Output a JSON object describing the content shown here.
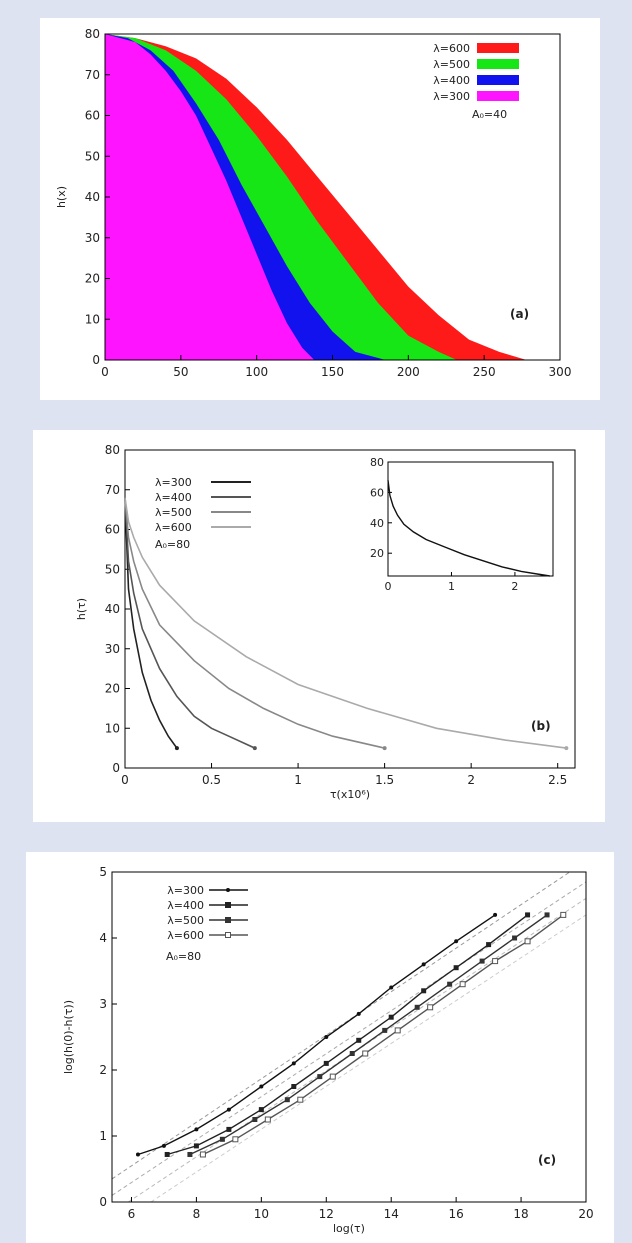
{
  "chart_data": [
    {
      "type": "area",
      "panel_label": "(a)",
      "xlabel": "",
      "ylabel": "h(x)",
      "xlim": [
        0,
        300
      ],
      "ylim": [
        0,
        80
      ],
      "xticks": [
        "0",
        "50",
        "100",
        "150",
        "200",
        "250",
        "300"
      ],
      "yticks": [
        "0",
        "10",
        "20",
        "30",
        "40",
        "50",
        "60",
        "70",
        "80"
      ],
      "param_label": "A₀=40",
      "legend_position": "top-right",
      "grid": false,
      "series": [
        {
          "name": "λ=600",
          "color": "#ff1a1a",
          "x": [
            0,
            20,
            40,
            60,
            80,
            100,
            120,
            140,
            160,
            180,
            200,
            220,
            240,
            260,
            278
          ],
          "y": [
            80,
            79,
            77,
            74,
            69,
            62,
            54,
            45,
            36,
            27,
            18,
            11,
            5,
            2,
            0
          ]
        },
        {
          "name": "λ=500",
          "color": "#16e616",
          "x": [
            0,
            20,
            40,
            60,
            80,
            100,
            120,
            140,
            160,
            180,
            200,
            220,
            232
          ],
          "y": [
            80,
            79,
            76,
            71,
            64,
            55,
            45,
            34,
            24,
            14,
            6,
            2,
            0
          ]
        },
        {
          "name": "λ=400",
          "color": "#1212ee",
          "x": [
            0,
            15,
            30,
            45,
            60,
            75,
            90,
            105,
            120,
            135,
            150,
            165,
            185
          ],
          "y": [
            80,
            79,
            76,
            71,
            63,
            54,
            43,
            33,
            23,
            14,
            7,
            2,
            0
          ]
        },
        {
          "name": "λ=300",
          "color": "#ff14ff",
          "x": [
            0,
            10,
            20,
            30,
            40,
            50,
            60,
            70,
            80,
            90,
            100,
            110,
            120,
            130,
            138
          ],
          "y": [
            80,
            79,
            78,
            75,
            71,
            66,
            60,
            52,
            44,
            35,
            26,
            17,
            9,
            3,
            0
          ]
        }
      ]
    },
    {
      "type": "line",
      "panel_label": "(b)",
      "xlabel": "τ(x10⁶)",
      "ylabel": "h(τ)",
      "xlim": [
        0,
        2.6
      ],
      "ylim": [
        0,
        80
      ],
      "xticks": [
        "0",
        "0.5",
        "1",
        "1.5",
        "2",
        "2.5"
      ],
      "yticks": [
        "0",
        "10",
        "20",
        "30",
        "40",
        "50",
        "60",
        "70",
        "80"
      ],
      "param_label": "A₀=80",
      "legend_position": "top-left",
      "grid": false,
      "series": [
        {
          "name": "λ=300",
          "color": "#222222",
          "x": [
            0,
            0.02,
            0.05,
            0.1,
            0.15,
            0.2,
            0.25,
            0.3
          ],
          "y": [
            68,
            45,
            35,
            24,
            17,
            12,
            8,
            5
          ]
        },
        {
          "name": "λ=400",
          "color": "#555555",
          "x": [
            0,
            0.02,
            0.05,
            0.1,
            0.2,
            0.3,
            0.4,
            0.5,
            0.6,
            0.75
          ],
          "y": [
            68,
            52,
            44,
            35,
            25,
            18,
            13,
            10,
            8,
            5
          ]
        },
        {
          "name": "λ=500",
          "color": "#888888",
          "x": [
            0,
            0.02,
            0.05,
            0.1,
            0.2,
            0.4,
            0.6,
            0.8,
            1.0,
            1.2,
            1.5
          ],
          "y": [
            68,
            58,
            52,
            45,
            36,
            27,
            20,
            15,
            11,
            8,
            5
          ]
        },
        {
          "name": "λ=600",
          "color": "#aaaaaa",
          "x": [
            0,
            0.02,
            0.05,
            0.1,
            0.2,
            0.4,
            0.7,
            1.0,
            1.4,
            1.8,
            2.2,
            2.55
          ],
          "y": [
            68,
            62,
            58,
            53,
            46,
            37,
            28,
            21,
            15,
            10,
            7,
            5
          ]
        }
      ],
      "inset": {
        "xlim": [
          0,
          2.6
        ],
        "ylim": [
          5,
          80
        ],
        "xticks": [
          "0",
          "1",
          "2"
        ],
        "yticks": [
          "20",
          "40",
          "60",
          "80"
        ],
        "x": [
          0,
          0.03,
          0.08,
          0.15,
          0.25,
          0.4,
          0.6,
          0.9,
          1.2,
          1.5,
          1.8,
          2.1,
          2.4,
          2.55
        ],
        "y": [
          68,
          58,
          51,
          45,
          39,
          34,
          29,
          24,
          19,
          15,
          11,
          8,
          6,
          5
        ]
      }
    },
    {
      "type": "scatter",
      "panel_label": "(c)",
      "xlabel": "log(τ)",
      "ylabel": "log(h(0)-h(τ))",
      "xlim": [
        5.4,
        20
      ],
      "ylim": [
        0,
        5
      ],
      "xticks": [
        "6",
        "8",
        "10",
        "12",
        "14",
        "16",
        "18",
        "20"
      ],
      "yticks": [
        "0",
        "1",
        "2",
        "3",
        "4",
        "5"
      ],
      "param_label": "A₀=80",
      "legend_position": "top-left",
      "grid": false,
      "series": [
        {
          "name": "λ=300",
          "color": "#111111",
          "marker": "dot",
          "x": [
            6.2,
            7,
            8,
            9,
            10,
            11,
            12,
            13,
            14,
            15,
            16,
            17.2
          ],
          "y": [
            0.72,
            0.85,
            1.1,
            1.4,
            1.75,
            2.1,
            2.5,
            2.85,
            3.25,
            3.6,
            3.95,
            4.35
          ]
        },
        {
          "name": "λ=400",
          "color": "#222222",
          "marker": "square",
          "x": [
            7.1,
            8,
            9,
            10,
            11,
            12,
            13,
            14,
            15,
            16,
            17,
            18.2
          ],
          "y": [
            0.72,
            0.85,
            1.1,
            1.4,
            1.75,
            2.1,
            2.45,
            2.8,
            3.2,
            3.55,
            3.9,
            4.35
          ]
        },
        {
          "name": "λ=500",
          "color": "#333333",
          "marker": "square",
          "x": [
            7.8,
            8.8,
            9.8,
            10.8,
            11.8,
            12.8,
            13.8,
            14.8,
            15.8,
            16.8,
            17.8,
            18.8
          ],
          "y": [
            0.72,
            0.95,
            1.25,
            1.55,
            1.9,
            2.25,
            2.6,
            2.95,
            3.3,
            3.65,
            4.0,
            4.35
          ]
        },
        {
          "name": "λ=600",
          "color": "#555555",
          "marker": "open-square",
          "x": [
            8.2,
            9.2,
            10.2,
            11.2,
            12.2,
            13.2,
            14.2,
            15.2,
            16.2,
            17.2,
            18.2,
            19.3
          ],
          "y": [
            0.72,
            0.95,
            1.25,
            1.55,
            1.9,
            2.25,
            2.6,
            2.95,
            3.3,
            3.65,
            3.95,
            4.35
          ]
        }
      ],
      "fit_lines": [
        {
          "color": "#999999",
          "x": [
            5.4,
            19.5
          ],
          "y": [
            0.35,
            5.0
          ]
        },
        {
          "color": "#aaaaaa",
          "x": [
            5.4,
            20
          ],
          "y": [
            0.1,
            4.85
          ]
        },
        {
          "color": "#bbbbbb",
          "x": [
            5.9,
            20
          ],
          "y": [
            0.0,
            4.6
          ]
        },
        {
          "color": "#cccccc",
          "x": [
            6.6,
            20
          ],
          "y": [
            0.0,
            4.35
          ]
        }
      ]
    }
  ]
}
